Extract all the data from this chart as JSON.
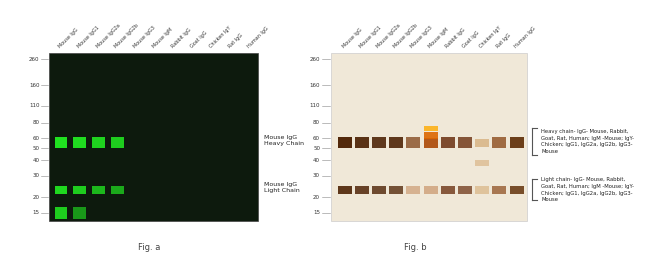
{
  "fig_a": {
    "bg_color": "#0d1a0d",
    "col_labels": [
      "Mouse IgG",
      "Mouse IgG1",
      "Mouse IgG2a",
      "Mouse IgG2b",
      "Mouse IgG3",
      "Mouse IgM",
      "Rabbit IgG",
      "Goat IgG",
      "Chicken IgY",
      "Rat IgG",
      "Human IgG"
    ],
    "annotation_heavy": "Mouse IgG\nHeavy Chain",
    "annotation_light": "Mouse IgG\nLight Chain",
    "fig_label": "Fig. a"
  },
  "fig_b": {
    "bg_color": "#f0e8d8",
    "col_labels": [
      "Mouse IgG",
      "Mouse IgG1",
      "Mouse IgG2a",
      "Mouse IgG2b",
      "Mouse IgG3",
      "Mouse IgM",
      "Rabbit IgG",
      "Goat IgG",
      "Chicken IgY",
      "Rat IgG",
      "Human IgG"
    ],
    "heavy_chain_annotation": "Heavy chain- IgG- Mouse, Rabbit,\nGoat, Rat, Human; IgM -Mouse; IgY-\nChicken; IgG1, IgG2a, IgG2b, IgG3-\nMouse",
    "light_chain_annotation": "Light chain- IgG- Mouse, Rabbit,\nGoat, Rat, Human; IgM -Mouse; IgY-\nChicken; IgG1, IgG2a, IgG2b, IgG3-\nMouse",
    "fig_label": "Fig. b"
  },
  "mw_labels": [
    260,
    160,
    110,
    80,
    60,
    50,
    40,
    30,
    20,
    15
  ],
  "white_color": "#ffffff",
  "black_color": "#000000"
}
